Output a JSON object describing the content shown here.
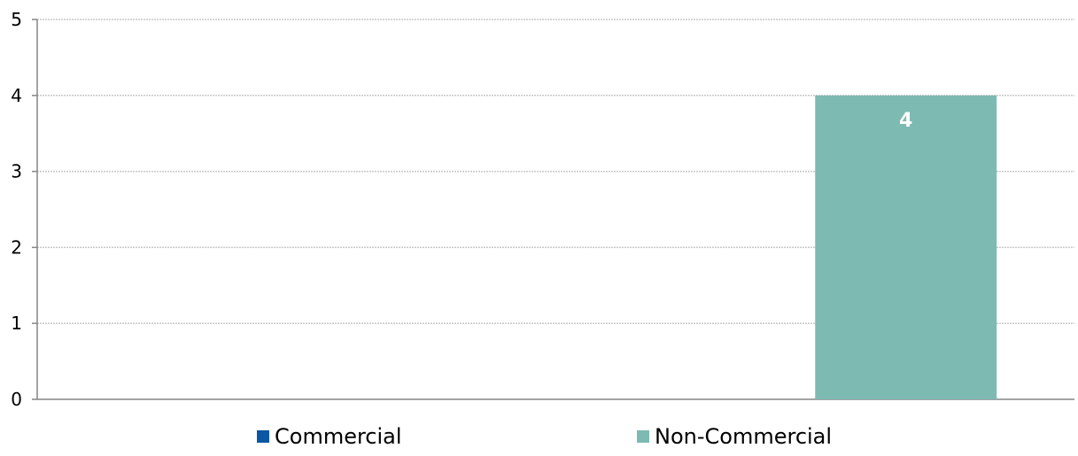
{
  "chart_data": {
    "type": "bar",
    "categories": [
      "Commercial",
      "Non-Commercial"
    ],
    "series": [
      {
        "name": "Commercial",
        "values": [
          0,
          null
        ],
        "color": "#0b57a4"
      },
      {
        "name": "Non-Commercial",
        "values": [
          null,
          4
        ],
        "color": "#7dbab2"
      }
    ],
    "data_labels": [
      {
        "category": "Non-Commercial",
        "text": "4"
      }
    ],
    "yticks": [
      "0",
      "1",
      "2",
      "3",
      "4",
      "5"
    ],
    "ylim": [
      0,
      5
    ],
    "grid": true,
    "legend_position": "bottom",
    "title": "",
    "xlabel": "",
    "ylabel": ""
  }
}
